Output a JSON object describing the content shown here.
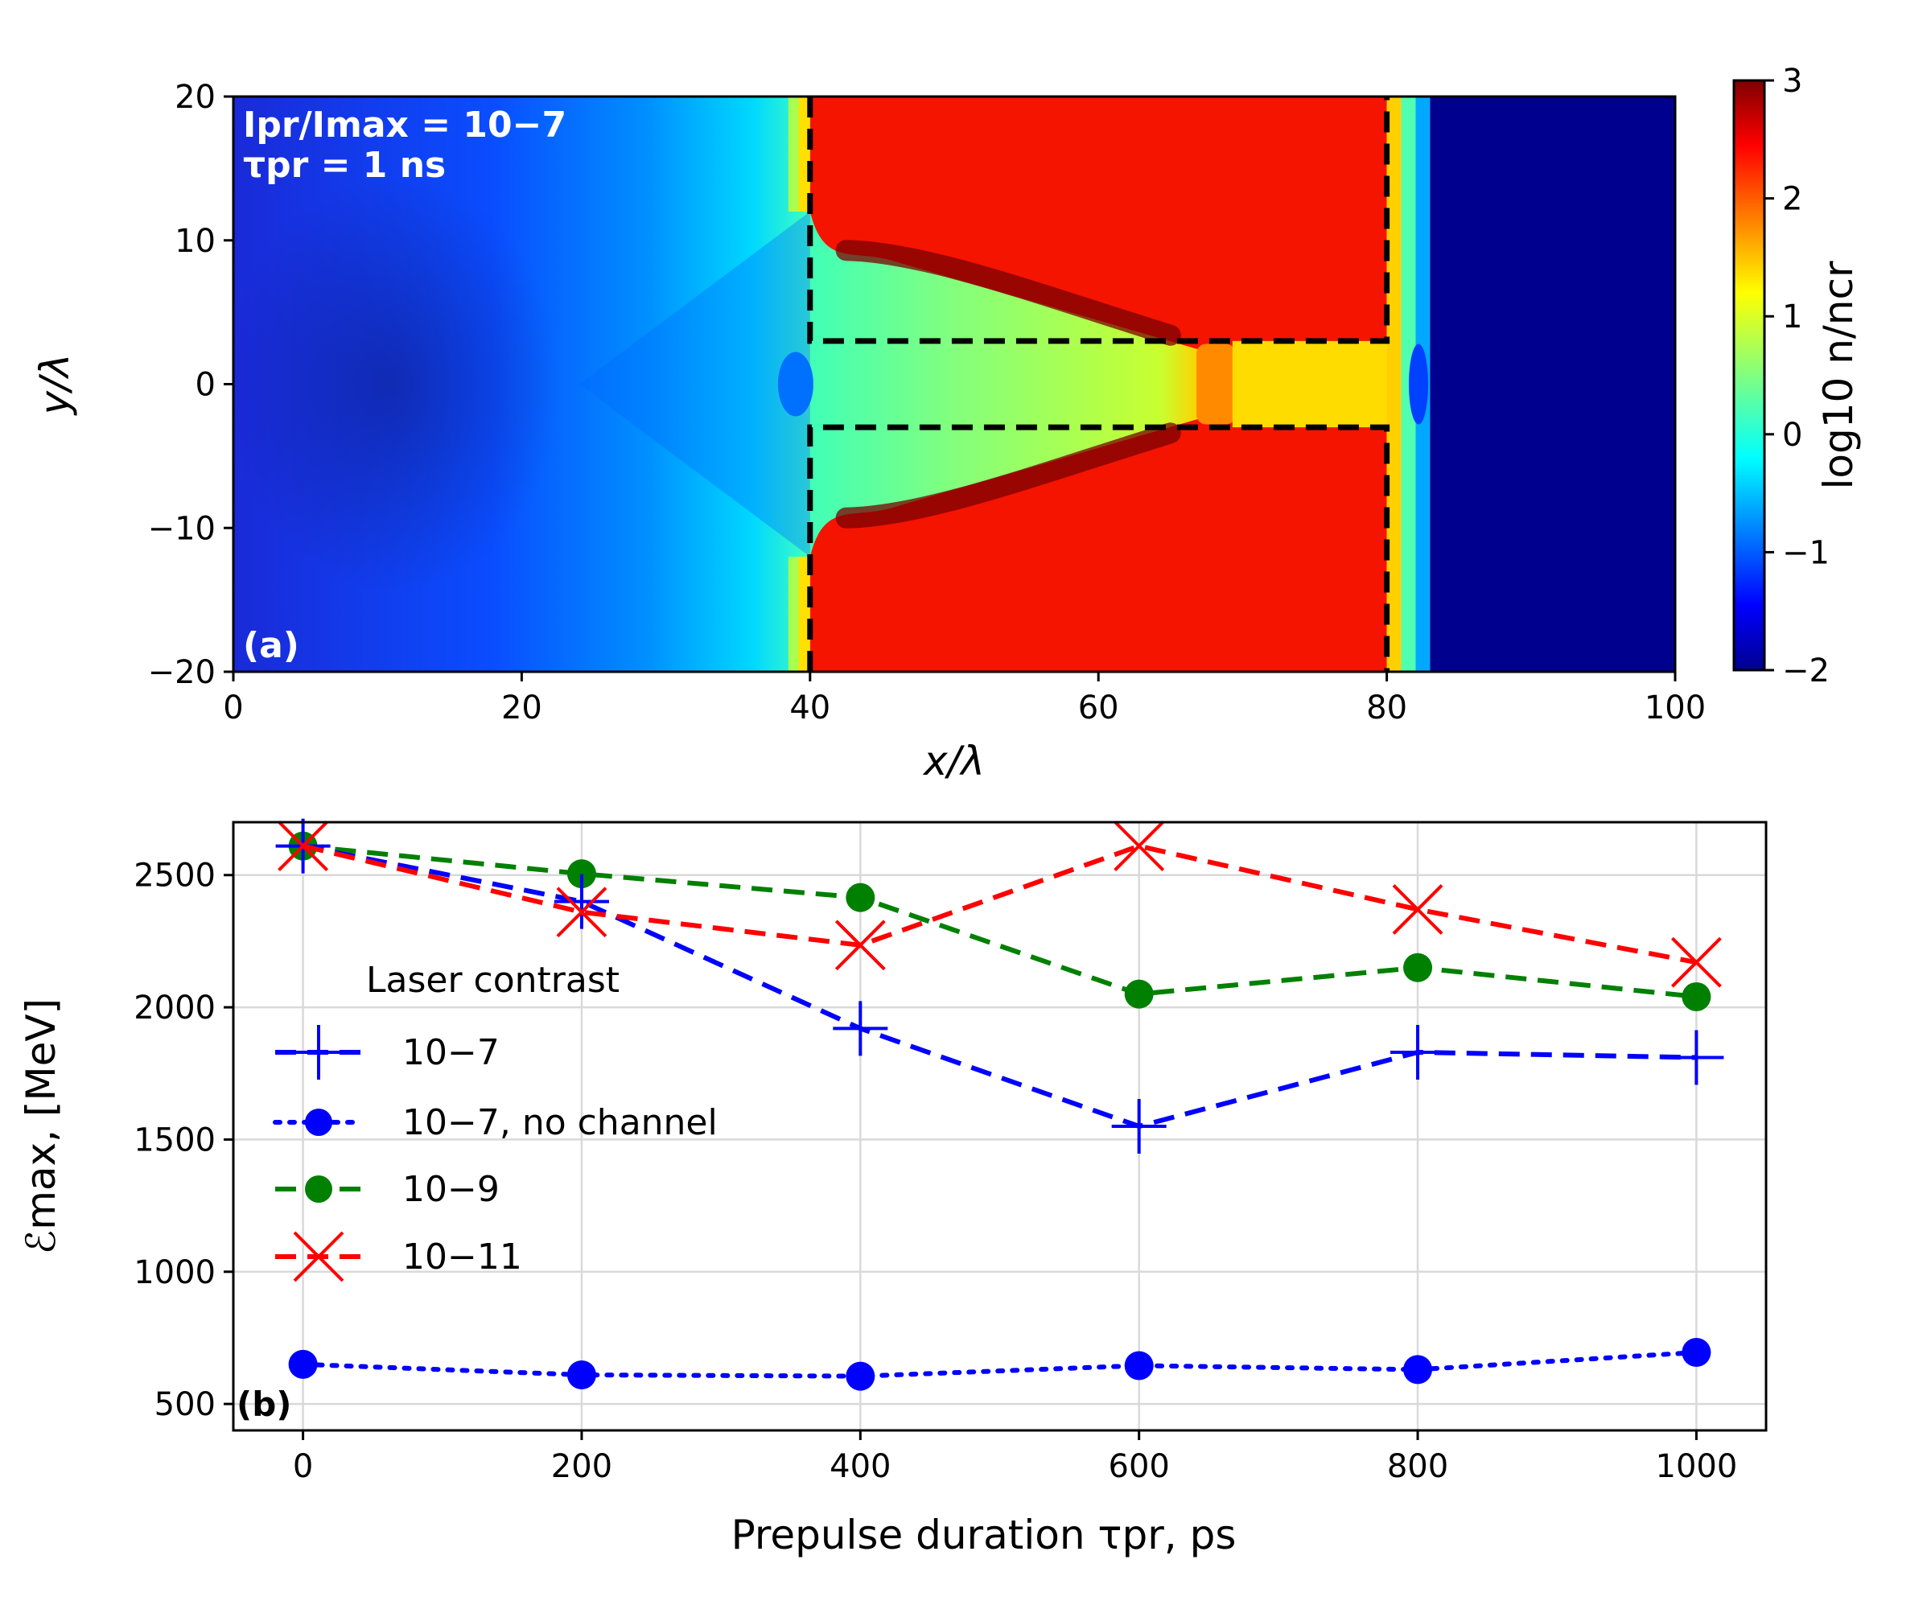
{
  "chart_data": [
    {
      "type": "heatmap",
      "panel_label": "(a)",
      "xlabel": "x/λ",
      "ylabel": "y/λ",
      "xlim": [
        0,
        100
      ],
      "ylim": [
        -20,
        20
      ],
      "xticks": [
        "0",
        "20",
        "40",
        "60",
        "80",
        "100"
      ],
      "yticks": [
        "−20",
        "−10",
        "0",
        "10",
        "20"
      ],
      "colorbar_label": "log10 n/ncr",
      "colorbar_range": [
        -2,
        3
      ],
      "colorbar_ticks": [
        "−2",
        "−1",
        "0",
        "1",
        "2",
        "3"
      ],
      "annotation_line1": "Ipr/Imax = 10−7",
      "annotation_line2": "τpr = 1 ns",
      "target_x": [
        40,
        80
      ],
      "channel_half_width": 3,
      "density_log10": {
        "vacuum_left": -1.3,
        "preplasma_edge": 0,
        "target_bulk": 2.5,
        "channel_fill": 0.8,
        "channel_plug": 1.4,
        "rear_vacuum": -2
      }
    },
    {
      "type": "line",
      "panel_label": "(b)",
      "xlabel": "Prepulse duration τpr, ps",
      "ylabel": "ℰmax,  [MeV]",
      "xlim": [
        -50,
        1050
      ],
      "ylim": [
        400,
        2700
      ],
      "xticks": [
        "0",
        "200",
        "400",
        "600",
        "800",
        "1000"
      ],
      "yticks": [
        "500",
        "1000",
        "1500",
        "2000",
        "2500"
      ],
      "x": [
        0,
        200,
        400,
        600,
        800,
        1000
      ],
      "legend_title": "Laser contrast",
      "series": [
        {
          "name": "10−7",
          "values": [
            2610,
            2400,
            1920,
            1550,
            1830,
            1810
          ],
          "color": "#0000ff",
          "marker": "plus",
          "linestyle": "dashed"
        },
        {
          "name": "10−7, no channel",
          "values": [
            650,
            610,
            605,
            645,
            630,
            695
          ],
          "color": "#0000ff",
          "marker": "circle",
          "linestyle": "dotted"
        },
        {
          "name": "10−9",
          "values": [
            2610,
            2505,
            2415,
            2050,
            2150,
            2040
          ],
          "color": "#008000",
          "marker": "circle",
          "linestyle": "dashed"
        },
        {
          "name": "10−11",
          "values": [
            2610,
            2360,
            2235,
            2610,
            2370,
            2170
          ],
          "color": "#ff0000",
          "marker": "cross",
          "linestyle": "dashed"
        }
      ]
    }
  ]
}
